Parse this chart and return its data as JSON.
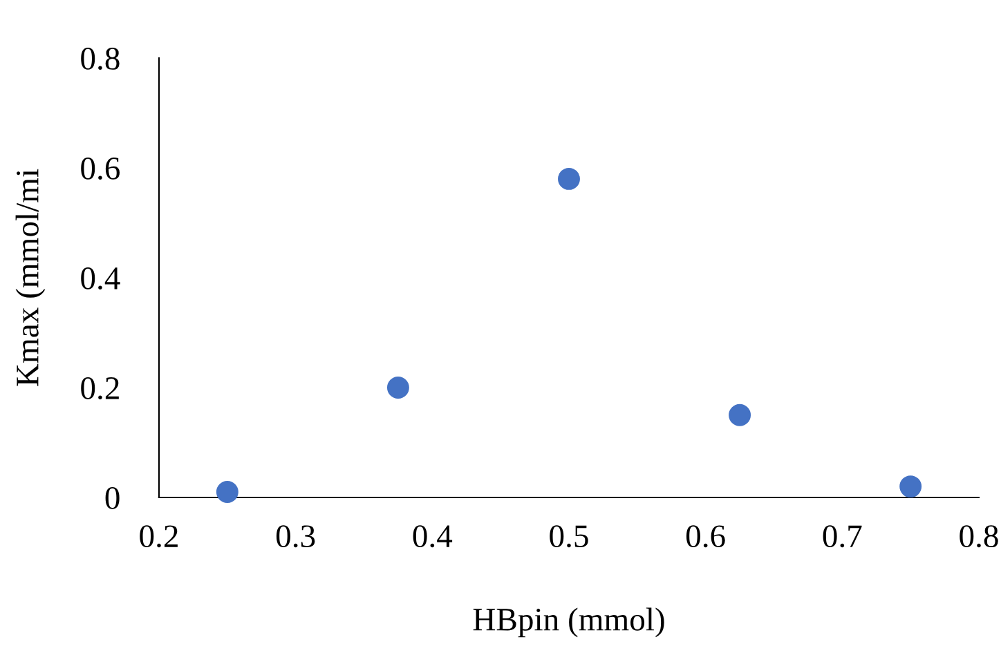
{
  "chart_data": {
    "type": "scatter",
    "xlabel": "HBpin (mmol)",
    "ylabel": "Kmax (mmol/mi",
    "x": [
      0.25,
      0.375,
      0.5,
      0.625,
      0.75
    ],
    "series": [
      {
        "color": "#4472c4",
        "values": [
          0.01,
          0.2,
          0.58,
          0.15,
          0.02
        ]
      }
    ],
    "xlim": [
      0.2,
      0.8
    ],
    "xticks": [
      0.2,
      0.3,
      0.4,
      0.5,
      0.6,
      0.7,
      0.8
    ],
    "ylim": [
      0,
      0.8
    ],
    "yticks": [
      0,
      0.2,
      0.4,
      0.6,
      0.8
    ],
    "grid": false,
    "legend": false,
    "marker": "circle"
  }
}
